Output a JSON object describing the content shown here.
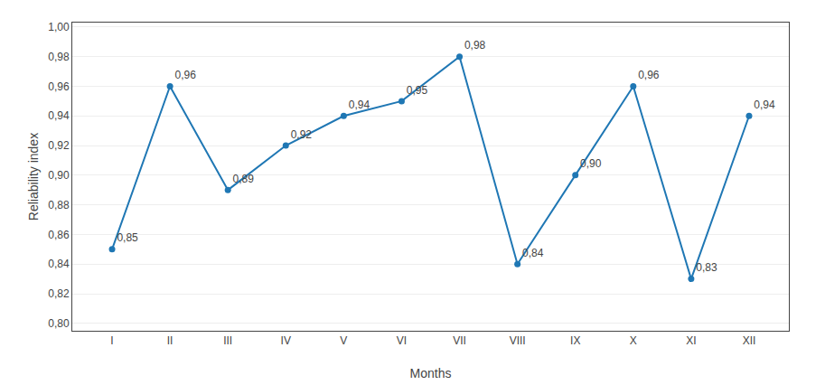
{
  "chart_data": {
    "type": "line",
    "xlabel": "Months",
    "ylabel": "Reliability index",
    "categories": [
      "I",
      "II",
      "III",
      "IV",
      "V",
      "VI",
      "VII",
      "VIII",
      "IX",
      "X",
      "XI",
      "XII"
    ],
    "values": [
      0.85,
      0.96,
      0.89,
      0.92,
      0.94,
      0.95,
      0.98,
      0.84,
      0.9,
      0.96,
      0.83,
      0.94
    ],
    "value_labels": [
      "0,85",
      "0,96",
      "0,89",
      "0,92",
      "0,94",
      "0,95",
      "0,98",
      "0,84",
      "0,90",
      "0,96",
      "0,83",
      "0,94"
    ],
    "data_labels": true,
    "marker": "circle",
    "ylim": [
      0.795,
      1.003
    ],
    "yticks": [
      {
        "value": 0.8,
        "label": "0,80"
      },
      {
        "value": 0.82,
        "label": "0,82"
      },
      {
        "value": 0.84,
        "label": "0,84"
      },
      {
        "value": 0.86,
        "label": "0,86"
      },
      {
        "value": 0.88,
        "label": "0,88"
      },
      {
        "value": 0.9,
        "label": "0,90"
      },
      {
        "value": 0.92,
        "label": "0,92"
      },
      {
        "value": 0.94,
        "label": "0,94"
      },
      {
        "value": 0.96,
        "label": "0,96"
      },
      {
        "value": 0.98,
        "label": "0,98"
      },
      {
        "value": 1.0,
        "label": "1,00"
      }
    ],
    "grid": true
  }
}
